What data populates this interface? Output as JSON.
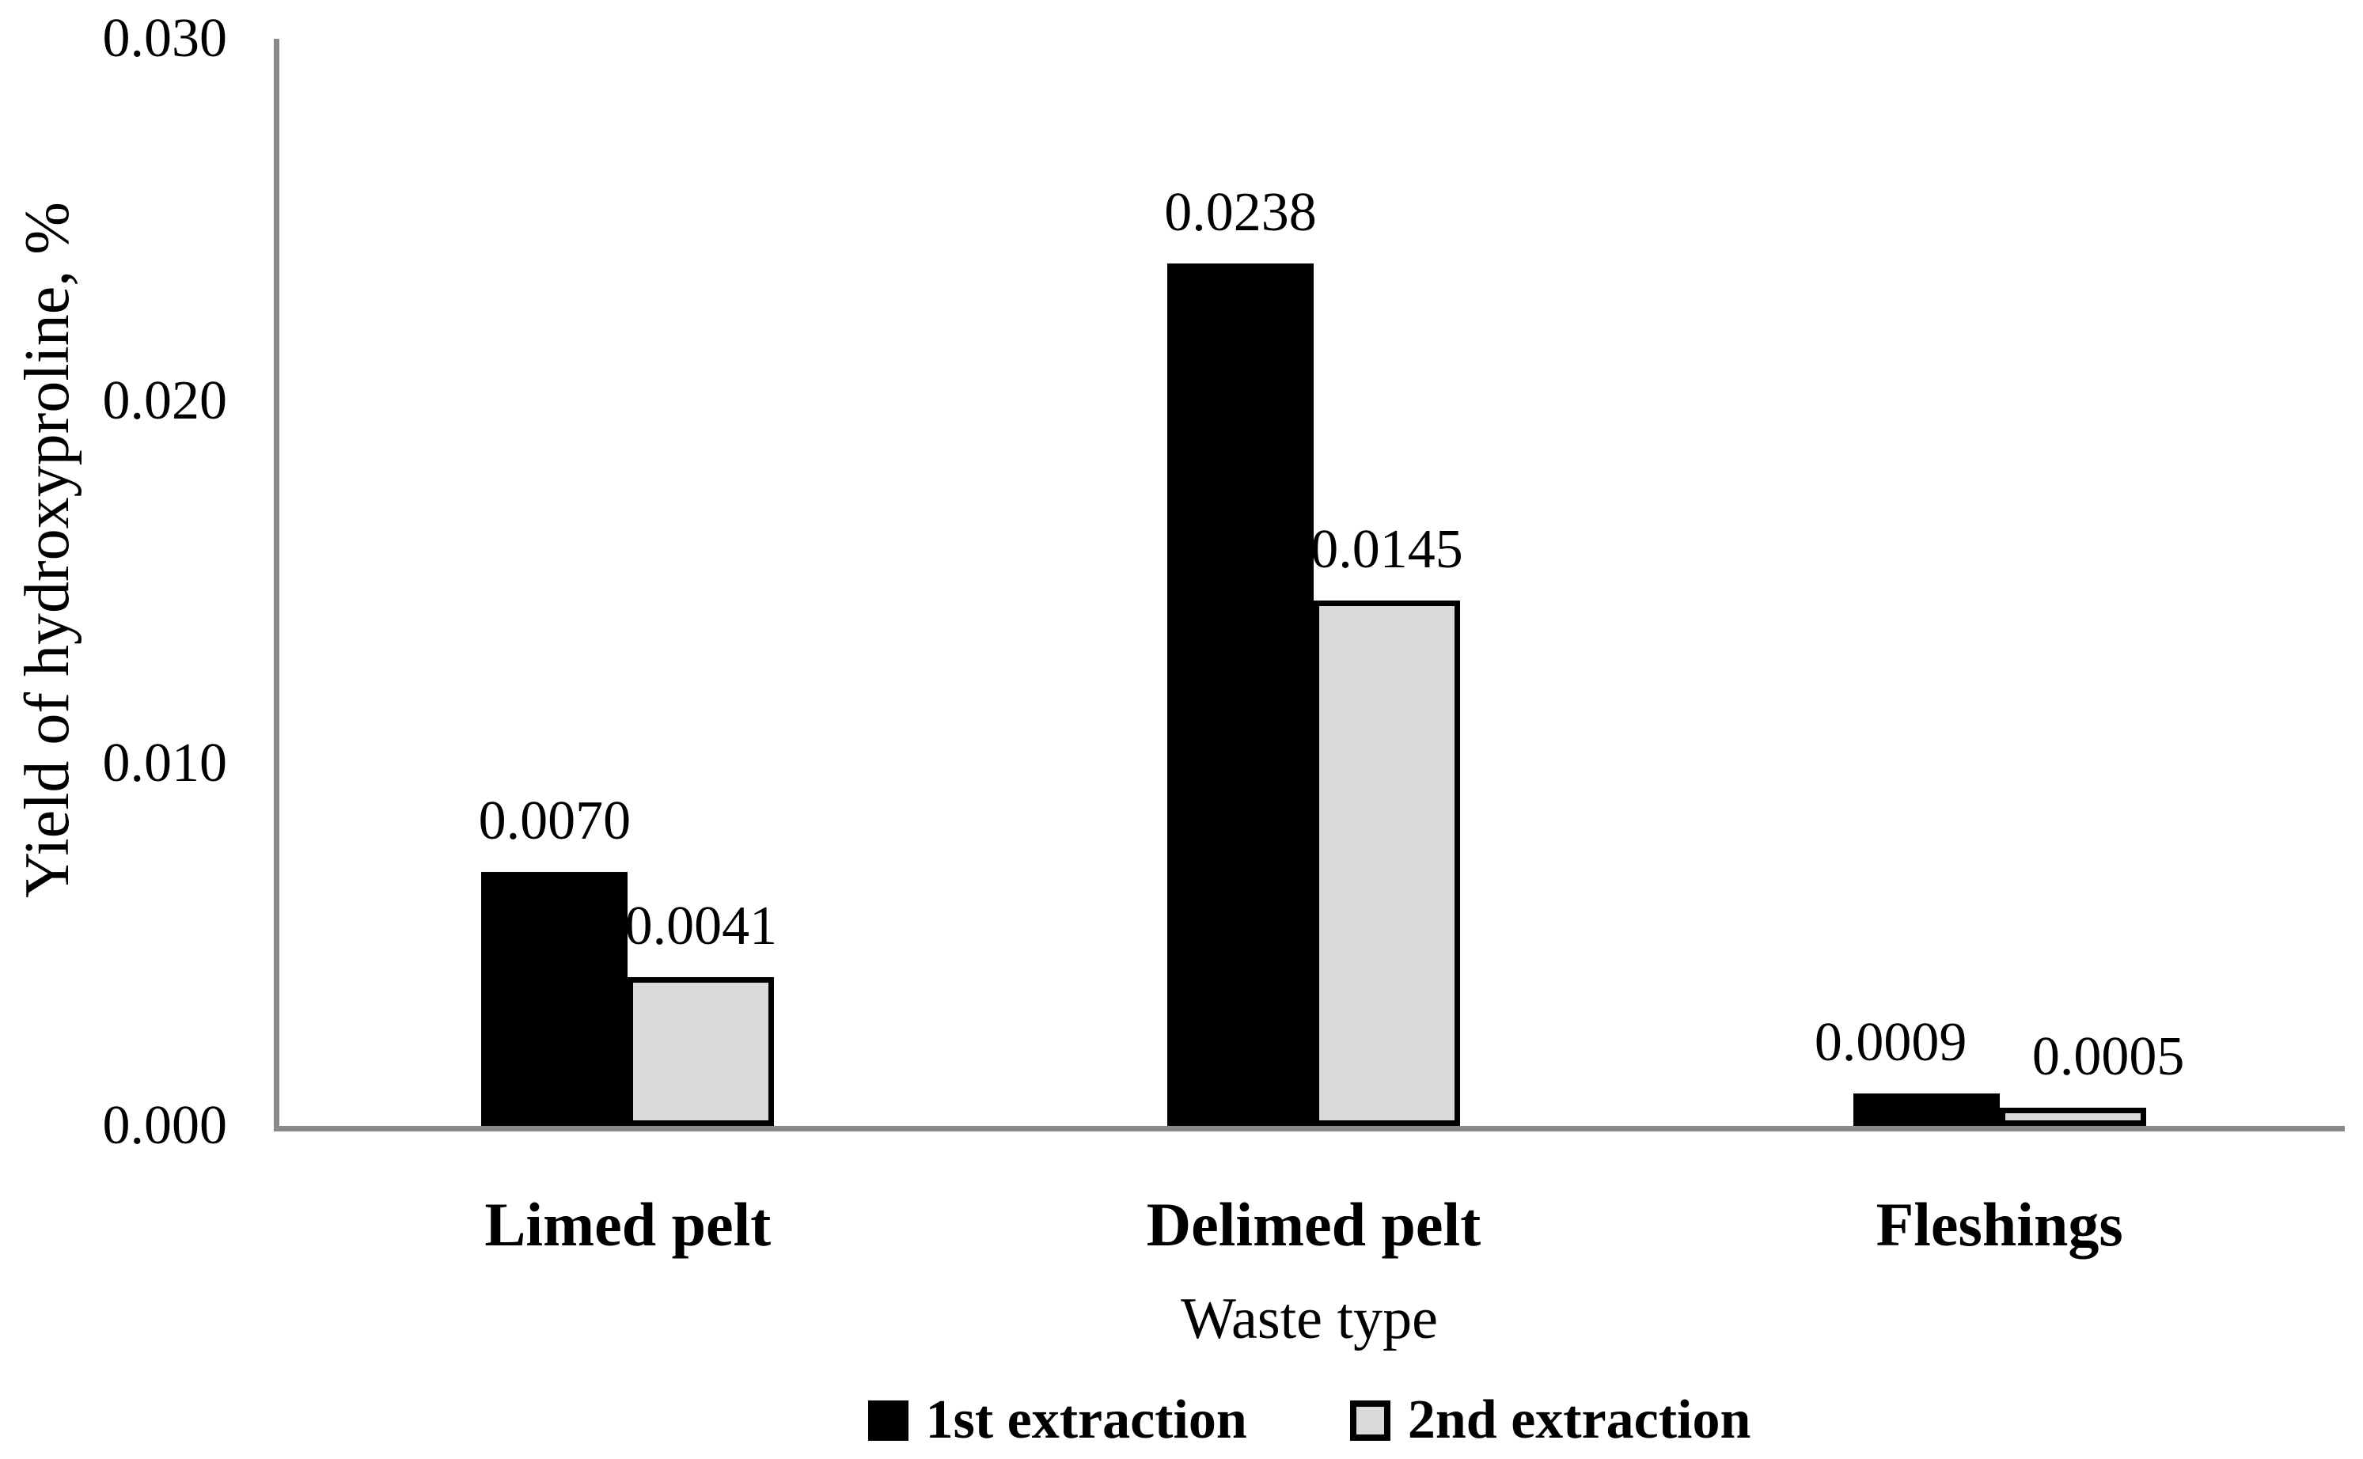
{
  "chart_data": {
    "type": "bar",
    "title": "",
    "categories": [
      "Limed pelt",
      "Delimed pelt",
      "Fleshings"
    ],
    "series": [
      {
        "name": "1st extraction",
        "color": "#000000",
        "border_color": "#000000",
        "values": [
          0.007,
          0.0238,
          0.0009
        ],
        "value_labels": [
          "0.0070",
          "0.0238",
          "0.0009"
        ]
      },
      {
        "name": "2nd extraction",
        "color": "#d9d9d9",
        "border_color": "#000000",
        "values": [
          0.0041,
          0.0145,
          0.0005
        ],
        "value_labels": [
          "0.0041",
          "0.0145",
          "0.0005"
        ]
      }
    ],
    "xlabel": "Waste type",
    "ylabel": "Yield of hydroxyproline, %",
    "ylim": [
      0,
      0.03
    ],
    "yticks": [
      0,
      0.01,
      0.02,
      0.03
    ],
    "ytick_labels": [
      "0.000",
      "0.010",
      "0.020",
      "0.030"
    ],
    "grid": false,
    "legend_position": "bottom",
    "axis_color": "#898989",
    "background_color": "#ffffff",
    "text_color": "#000000"
  }
}
